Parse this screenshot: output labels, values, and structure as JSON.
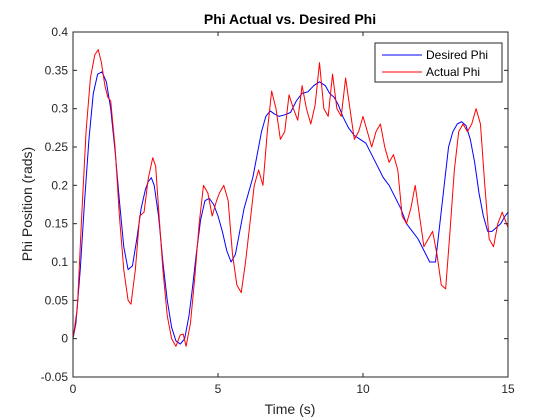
{
  "chart_data": {
    "type": "line",
    "title": "Phi Actual vs. Desired Phi",
    "xlabel": "Time (s)",
    "ylabel": "Phi Position (rads)",
    "xlim": [
      0,
      15
    ],
    "ylim": [
      -0.05,
      0.4
    ],
    "xticks": [
      0,
      5,
      10,
      15
    ],
    "xtick_labels": [
      "0",
      "5",
      "10",
      "15"
    ],
    "yticks": [
      -0.05,
      0,
      0.05,
      0.1,
      0.15,
      0.2,
      0.25,
      0.3,
      0.35,
      0.4
    ],
    "ytick_labels": [
      "-0.05",
      "0",
      "0.05",
      "0.1",
      "0.15",
      "0.2",
      "0.25",
      "0.3",
      "0.35",
      "0.4"
    ],
    "grid": false,
    "legend_position": "top-right",
    "series": [
      {
        "name": "Desired Phi",
        "color": "#0000ff",
        "x": [
          0,
          0.1,
          0.25,
          0.4,
          0.55,
          0.7,
          0.85,
          1.0,
          1.15,
          1.3,
          1.45,
          1.6,
          1.75,
          1.9,
          2.05,
          2.2,
          2.35,
          2.5,
          2.6,
          2.7,
          2.8,
          2.95,
          3.1,
          3.25,
          3.4,
          3.55,
          3.7,
          3.85,
          4.0,
          4.1,
          4.25,
          4.4,
          4.55,
          4.7,
          4.85,
          5.0,
          5.15,
          5.3,
          5.45,
          5.6,
          5.75,
          5.9,
          6.05,
          6.2,
          6.35,
          6.5,
          6.65,
          6.8,
          6.95,
          7.1,
          7.3,
          7.5,
          7.7,
          7.9,
          8.1,
          8.3,
          8.5,
          8.7,
          8.85,
          9.0,
          9.15,
          9.3,
          9.5,
          9.7,
          9.9,
          10.1,
          10.3,
          10.5,
          10.7,
          10.9,
          11.1,
          11.3,
          11.5,
          11.7,
          11.9,
          12.1,
          12.3,
          12.5,
          12.65,
          12.8,
          12.95,
          13.1,
          13.25,
          13.4,
          13.55,
          13.7,
          13.85,
          14.0,
          14.15,
          14.3,
          14.45,
          14.6,
          14.75,
          14.9,
          15.0
        ],
        "y": [
          0.0,
          0.02,
          0.09,
          0.18,
          0.26,
          0.32,
          0.345,
          0.348,
          0.335,
          0.3,
          0.245,
          0.18,
          0.12,
          0.09,
          0.095,
          0.13,
          0.17,
          0.195,
          0.205,
          0.21,
          0.2,
          0.16,
          0.1,
          0.05,
          0.015,
          -0.003,
          -0.007,
          0.0,
          0.03,
          0.06,
          0.11,
          0.155,
          0.18,
          0.183,
          0.175,
          0.16,
          0.14,
          0.115,
          0.1,
          0.11,
          0.14,
          0.17,
          0.19,
          0.21,
          0.24,
          0.27,
          0.29,
          0.297,
          0.293,
          0.29,
          0.292,
          0.295,
          0.31,
          0.32,
          0.322,
          0.33,
          0.335,
          0.33,
          0.32,
          0.315,
          0.305,
          0.29,
          0.275,
          0.265,
          0.26,
          0.255,
          0.24,
          0.225,
          0.21,
          0.2,
          0.185,
          0.17,
          0.15,
          0.14,
          0.13,
          0.115,
          0.1,
          0.1,
          0.15,
          0.2,
          0.25,
          0.27,
          0.28,
          0.283,
          0.278,
          0.26,
          0.23,
          0.19,
          0.16,
          0.14,
          0.14,
          0.145,
          0.15,
          0.16,
          0.165
        ]
      },
      {
        "name": "Actual Phi",
        "color": "#ff0000",
        "x": [
          0,
          0.15,
          0.3,
          0.45,
          0.6,
          0.75,
          0.87,
          0.98,
          1.1,
          1.2,
          1.3,
          1.45,
          1.6,
          1.75,
          1.9,
          2.0,
          2.15,
          2.3,
          2.45,
          2.6,
          2.75,
          2.85,
          2.95,
          3.1,
          3.25,
          3.4,
          3.55,
          3.7,
          3.8,
          3.9,
          4.05,
          4.2,
          4.35,
          4.5,
          4.65,
          4.8,
          4.95,
          5.05,
          5.2,
          5.35,
          5.5,
          5.65,
          5.8,
          5.95,
          6.1,
          6.25,
          6.4,
          6.55,
          6.7,
          6.85,
          7.0,
          7.15,
          7.3,
          7.45,
          7.6,
          7.75,
          7.9,
          8.05,
          8.2,
          8.35,
          8.5,
          8.65,
          8.8,
          8.95,
          9.1,
          9.25,
          9.4,
          9.55,
          9.7,
          9.85,
          10.0,
          10.15,
          10.3,
          10.45,
          10.6,
          10.75,
          10.9,
          11.05,
          11.2,
          11.35,
          11.5,
          11.65,
          11.8,
          11.95,
          12.1,
          12.25,
          12.4,
          12.55,
          12.7,
          12.85,
          13.0,
          13.15,
          13.3,
          13.45,
          13.6,
          13.75,
          13.9,
          14.05,
          14.2,
          14.35,
          14.5,
          14.65,
          14.8,
          15.0
        ],
        "y": [
          0.0,
          0.04,
          0.16,
          0.27,
          0.34,
          0.37,
          0.377,
          0.36,
          0.33,
          0.315,
          0.31,
          0.25,
          0.16,
          0.09,
          0.05,
          0.045,
          0.09,
          0.16,
          0.165,
          0.21,
          0.236,
          0.225,
          0.17,
          0.09,
          0.03,
          0.0,
          -0.01,
          0.005,
          0.006,
          -0.01,
          0.02,
          0.08,
          0.15,
          0.2,
          0.19,
          0.16,
          0.18,
          0.19,
          0.2,
          0.18,
          0.11,
          0.07,
          0.06,
          0.1,
          0.15,
          0.2,
          0.22,
          0.2,
          0.27,
          0.323,
          0.3,
          0.26,
          0.27,
          0.318,
          0.3,
          0.285,
          0.33,
          0.3,
          0.28,
          0.305,
          0.36,
          0.3,
          0.29,
          0.345,
          0.3,
          0.29,
          0.34,
          0.3,
          0.26,
          0.27,
          0.29,
          0.27,
          0.25,
          0.27,
          0.28,
          0.25,
          0.23,
          0.24,
          0.22,
          0.16,
          0.15,
          0.17,
          0.2,
          0.16,
          0.12,
          0.13,
          0.14,
          0.11,
          0.07,
          0.065,
          0.14,
          0.22,
          0.27,
          0.28,
          0.27,
          0.28,
          0.3,
          0.28,
          0.2,
          0.13,
          0.12,
          0.15,
          0.165,
          0.145
        ]
      }
    ]
  }
}
